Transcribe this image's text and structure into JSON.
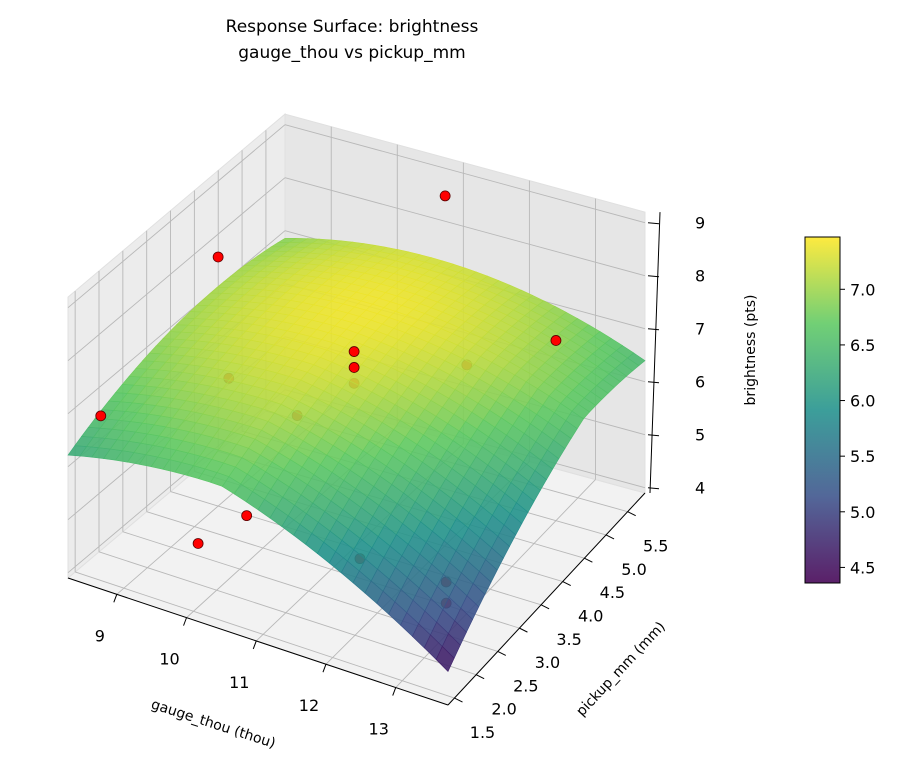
{
  "chart_data": {
    "type": "surface",
    "title": [
      "Response Surface: brightness",
      "gauge_thou vs pickup_mm"
    ],
    "xlabel": "gauge_thou (thou)",
    "ylabel": "pickup_mm (mm)",
    "zlabel": "brightness (pts)",
    "xlim": [
      8.3,
      13.75
    ],
    "ylim": [
      1.35,
      5.9
    ],
    "zlim": [
      3.9,
      9.2
    ],
    "xticks": [
      9,
      10,
      11,
      12,
      13
    ],
    "yticks": [
      1.5,
      2.0,
      2.5,
      3.0,
      3.5,
      4.0,
      4.5,
      5.0,
      5.5
    ],
    "zticks": [
      4,
      5,
      6,
      7,
      8,
      9
    ],
    "colormap": "viridis",
    "colorbar": {
      "range": [
        4.36,
        7.47
      ],
      "ticks": [
        4.5,
        5.0,
        5.5,
        6.0,
        6.5,
        7.0
      ]
    },
    "surface_model": {
      "peak": 7.4,
      "center": [
        10.5,
        4.5
      ],
      "a": 0.08,
      "b": 0.08,
      "c": 0.12
    },
    "point_color": "#ff0000",
    "points": [
      {
        "x": 11,
        "y": 5.5,
        "z": 8.9
      },
      {
        "x": 9,
        "y": 3.5,
        "z": 8.6
      },
      {
        "x": 13,
        "y": 5.0,
        "z": 7.3
      },
      {
        "x": 8.6,
        "y": 1.6,
        "z": 6.9
      },
      {
        "x": 10,
        "y": 1.6,
        "z": 5.1
      },
      {
        "x": 12.2,
        "y": 1.8,
        "z": 5.6
      },
      {
        "x": 9.5,
        "y": 3.0,
        "z": 6.9
      },
      {
        "x": 10.5,
        "y": 3.0,
        "z": 6.6
      },
      {
        "x": 11,
        "y": 3.5,
        "z": 7.0
      },
      {
        "x": 11,
        "y": 3.5,
        "z": 7.3
      },
      {
        "x": 11,
        "y": 3.5,
        "z": 7.6
      },
      {
        "x": 12,
        "y": 4.5,
        "z": 6.9
      },
      {
        "x": 10.5,
        "y": 1.9,
        "z": 5.6
      },
      {
        "x": 13,
        "y": 2.5,
        "z": 4.9
      },
      {
        "x": 13,
        "y": 2.5,
        "z": 4.5
      }
    ]
  }
}
